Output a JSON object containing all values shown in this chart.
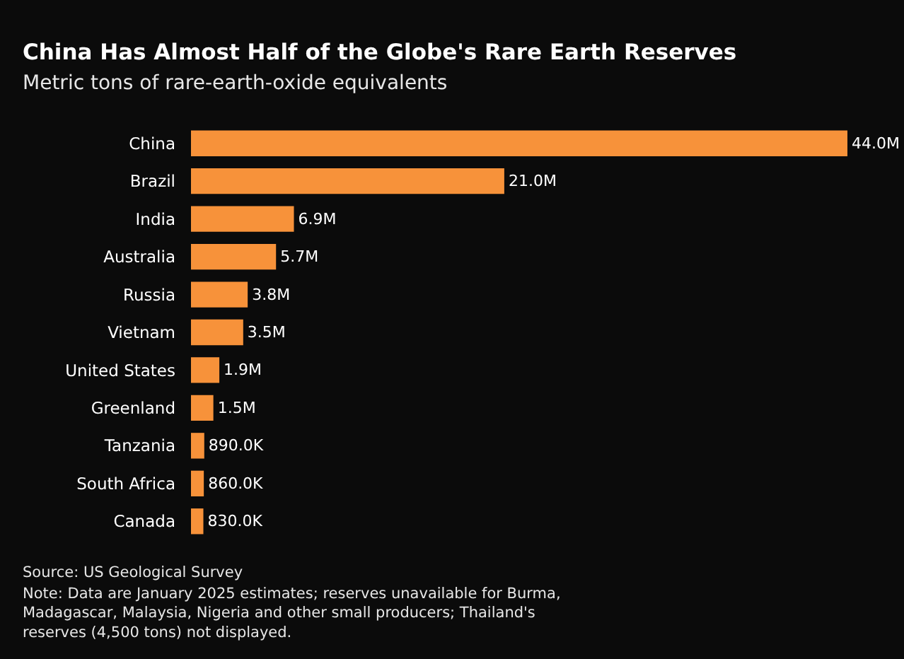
{
  "chart_data": {
    "type": "bar",
    "orientation": "horizontal",
    "title": "China Has Almost Half of the Globe's Rare Earth Reserves",
    "subtitle": "Metric tons of rare-earth-oxide equivalents",
    "categories": [
      "China",
      "Brazil",
      "India",
      "Australia",
      "Russia",
      "Vietnam",
      "United States",
      "Greenland",
      "Tanzania",
      "South Africa",
      "Canada"
    ],
    "values": [
      44000000,
      21000000,
      6900000,
      5700000,
      3800000,
      3500000,
      1900000,
      1500000,
      890000,
      860000,
      830000
    ],
    "value_labels": [
      "44.0M",
      "21.0M",
      "6.9M",
      "5.7M",
      "3.8M",
      "3.5M",
      "1.9M",
      "1.5M",
      "890.0K",
      "860.0K",
      "830.0K"
    ],
    "color": "#f7923a",
    "annotations": [
      "Source: US Geological Survey",
      "Note: Data are January 2025 estimates; reserves unavailable for Burma, Madagascar, Malaysia, Nigeria and other small producers; Thailand's reserves (4,500 tons) not displayed."
    ],
    "legend": false
  }
}
